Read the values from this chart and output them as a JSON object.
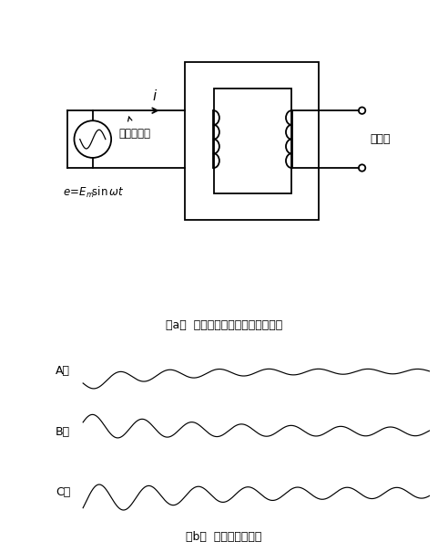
{
  "title_a": "（a）  充電時の様子（単相で表示）",
  "title_b": "（b）  各相電流波形例",
  "label_A": "A相",
  "label_B": "B相",
  "label_C": "C相",
  "label_open": "開放中",
  "label_charge": "変圧器充電",
  "bg_color": "#ffffff",
  "line_color": "#000000"
}
